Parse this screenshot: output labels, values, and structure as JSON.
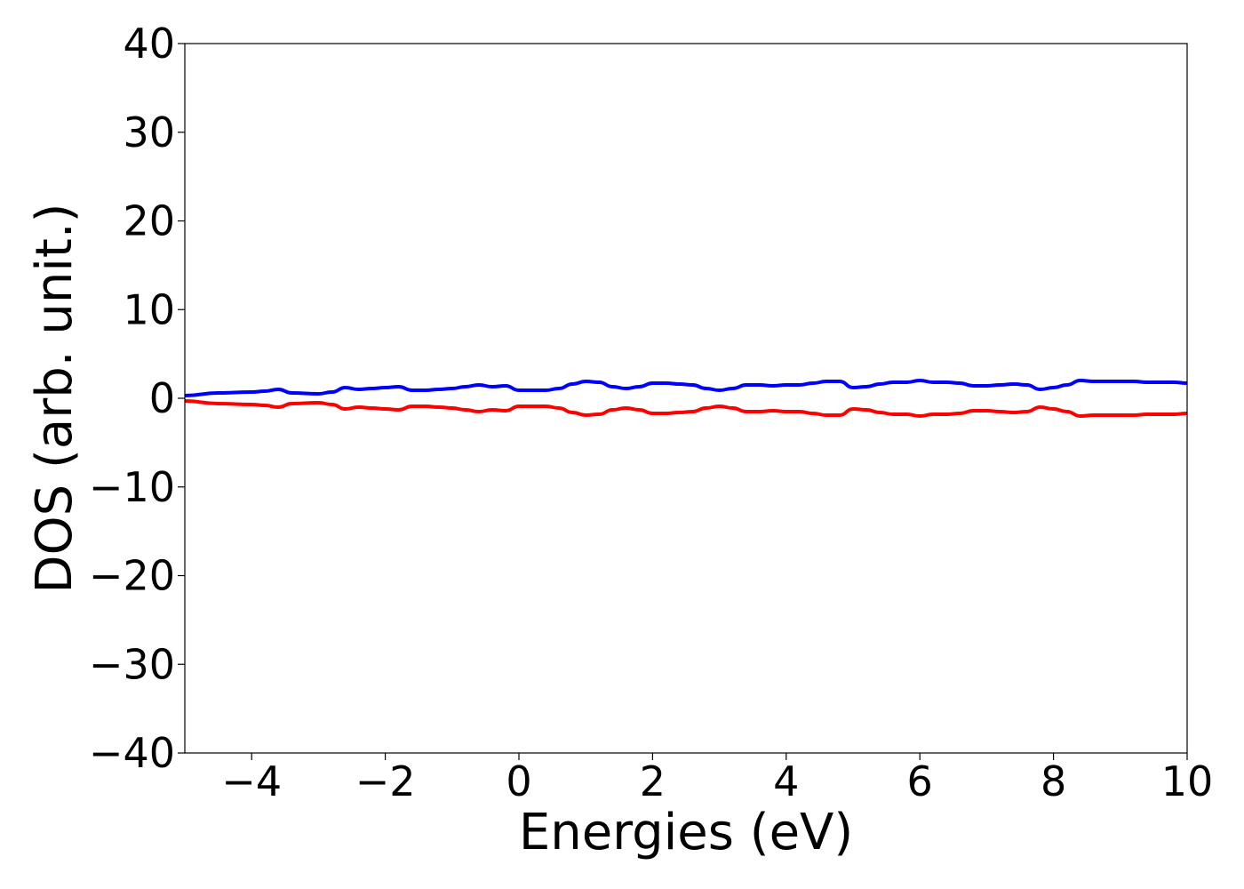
{
  "chart_data": {
    "type": "line",
    "title": "",
    "xlabel": "Energies (eV)",
    "ylabel": "DOS (arb. unit.)",
    "xlim": [
      -5,
      10
    ],
    "ylim": [
      -40,
      40
    ],
    "xticks": [
      -4,
      -2,
      0,
      2,
      4,
      6,
      8,
      10
    ],
    "yticks": [
      -40,
      -30,
      -20,
      -10,
      0,
      10,
      20,
      30,
      40
    ],
    "xtick_labels": [
      "−4",
      "−2",
      "0",
      "2",
      "4",
      "6",
      "8",
      "10"
    ],
    "ytick_labels": [
      "−40",
      "−30",
      "−20",
      "−10",
      "0",
      "10",
      "20",
      "30",
      "40"
    ],
    "grid": false,
    "legend": "none",
    "series": [
      {
        "color": "#0000ff",
        "x": [
          -5.0,
          -4.5,
          -4.0,
          -3.8,
          -3.6,
          -3.4,
          -3.0,
          -2.8,
          -2.6,
          -2.4,
          -2.2,
          -2.0,
          -1.8,
          -1.6,
          -1.4,
          -1.2,
          -1.0,
          -0.8,
          -0.6,
          -0.4,
          -0.2,
          0.0,
          0.2,
          0.4,
          0.6,
          0.8,
          1.0,
          1.2,
          1.4,
          1.6,
          1.8,
          2.0,
          2.2,
          2.4,
          2.6,
          2.8,
          3.0,
          3.2,
          3.4,
          3.6,
          3.8,
          4.0,
          4.2,
          4.4,
          4.6,
          4.8,
          5.0,
          5.2,
          5.4,
          5.6,
          5.8,
          6.0,
          6.2,
          6.4,
          6.6,
          6.8,
          7.0,
          7.2,
          7.4,
          7.6,
          7.8,
          8.0,
          8.2,
          8.4,
          8.6,
          8.8,
          9.0,
          9.2,
          9.4,
          9.6,
          9.8,
          10.0
        ],
        "y": [
          0.3,
          0.6,
          0.7,
          0.8,
          1.0,
          0.6,
          0.5,
          0.7,
          1.2,
          1.0,
          1.1,
          1.2,
          1.3,
          0.9,
          0.9,
          1.0,
          1.1,
          1.3,
          1.5,
          1.3,
          1.4,
          0.9,
          0.9,
          0.9,
          1.1,
          1.6,
          1.9,
          1.8,
          1.3,
          1.1,
          1.3,
          1.7,
          1.7,
          1.6,
          1.5,
          1.1,
          0.9,
          1.1,
          1.5,
          1.5,
          1.4,
          1.5,
          1.5,
          1.7,
          1.9,
          1.9,
          1.2,
          1.3,
          1.6,
          1.8,
          1.8,
          2.0,
          1.8,
          1.8,
          1.7,
          1.4,
          1.4,
          1.5,
          1.6,
          1.5,
          1.0,
          1.2,
          1.5,
          2.0,
          1.9,
          1.9,
          1.9,
          1.9,
          1.8,
          1.8,
          1.8,
          1.7
        ]
      },
      {
        "color": "#ff0000",
        "x": [
          -5.0,
          -4.5,
          -4.0,
          -3.8,
          -3.6,
          -3.4,
          -3.0,
          -2.8,
          -2.6,
          -2.4,
          -2.2,
          -2.0,
          -1.8,
          -1.6,
          -1.4,
          -1.2,
          -1.0,
          -0.8,
          -0.6,
          -0.4,
          -0.2,
          0.0,
          0.2,
          0.4,
          0.6,
          0.8,
          1.0,
          1.2,
          1.4,
          1.6,
          1.8,
          2.0,
          2.2,
          2.4,
          2.6,
          2.8,
          3.0,
          3.2,
          3.4,
          3.6,
          3.8,
          4.0,
          4.2,
          4.4,
          4.6,
          4.8,
          5.0,
          5.2,
          5.4,
          5.6,
          5.8,
          6.0,
          6.2,
          6.4,
          6.6,
          6.8,
          7.0,
          7.2,
          7.4,
          7.6,
          7.8,
          8.0,
          8.2,
          8.4,
          8.6,
          8.8,
          9.0,
          9.2,
          9.4,
          9.6,
          9.8,
          10.0
        ],
        "y": [
          -0.3,
          -0.6,
          -0.7,
          -0.8,
          -1.0,
          -0.6,
          -0.5,
          -0.7,
          -1.2,
          -1.0,
          -1.1,
          -1.2,
          -1.3,
          -0.9,
          -0.9,
          -1.0,
          -1.1,
          -1.3,
          -1.5,
          -1.3,
          -1.4,
          -0.9,
          -0.9,
          -0.9,
          -1.1,
          -1.6,
          -1.9,
          -1.8,
          -1.3,
          -1.1,
          -1.3,
          -1.7,
          -1.7,
          -1.6,
          -1.5,
          -1.1,
          -0.9,
          -1.1,
          -1.5,
          -1.5,
          -1.4,
          -1.5,
          -1.5,
          -1.7,
          -1.9,
          -1.9,
          -1.2,
          -1.3,
          -1.6,
          -1.8,
          -1.8,
          -2.0,
          -1.8,
          -1.8,
          -1.7,
          -1.4,
          -1.4,
          -1.5,
          -1.6,
          -1.5,
          -1.0,
          -1.2,
          -1.5,
          -2.0,
          -1.9,
          -1.9,
          -1.9,
          -1.9,
          -1.8,
          -1.8,
          -1.8,
          -1.7
        ]
      }
    ]
  }
}
